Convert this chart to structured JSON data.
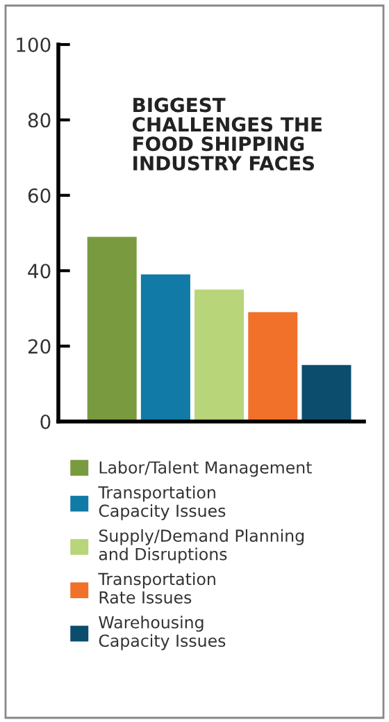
{
  "chart_data": {
    "type": "bar",
    "title": "BIGGEST\nCHALLENGES THE\nFOOD SHIPPING\nINDUSTRY FACES",
    "categories": [
      null,
      null,
      null,
      null,
      null
    ],
    "series": [
      {
        "name": "Labor/Talent Management",
        "color": "#7a9a3f",
        "values": [
          49,
          null,
          null,
          null,
          null
        ]
      },
      {
        "name": "Transportation\nCapacity Issues",
        "color": "#117aa6",
        "values": [
          null,
          39,
          null,
          null,
          null
        ]
      },
      {
        "name": "Supply/Demand Planning\nand Disruptions",
        "color": "#b8d57a",
        "values": [
          null,
          null,
          35,
          null,
          null
        ]
      },
      {
        "name": "Transportation\nRate Issues",
        "color": "#f1702a",
        "values": [
          null,
          null,
          null,
          29,
          null
        ]
      },
      {
        "name": "Warehousing\nCapacity Issues",
        "color": "#0c4d6e",
        "values": [
          null,
          null,
          null,
          null,
          15
        ]
      }
    ],
    "ylim": [
      0,
      100
    ],
    "yticks": [
      0,
      20,
      40,
      60,
      80,
      100
    ],
    "grid": false,
    "legend": "bottom"
  }
}
